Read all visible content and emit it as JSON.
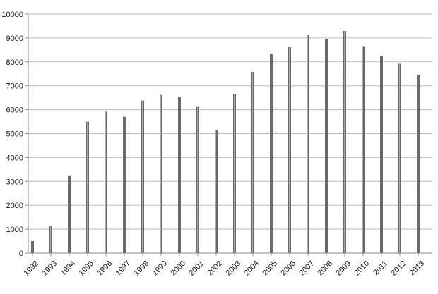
{
  "chart_data": {
    "type": "bar",
    "title": "",
    "xlabel": "",
    "ylabel": "",
    "categories": [
      "1992",
      "1993",
      "1994",
      "1995",
      "1996",
      "1997",
      "1998",
      "1999",
      "2000",
      "2001",
      "2002",
      "2003",
      "2004",
      "2005",
      "2006",
      "2007",
      "2008",
      "2009",
      "2010",
      "2011",
      "2012",
      "2013"
    ],
    "values": [
      500,
      1150,
      3250,
      5500,
      5920,
      5700,
      6380,
      6620,
      6530,
      6120,
      5150,
      6640,
      7580,
      8340,
      8620,
      9120,
      8960,
      9290,
      8660,
      8250,
      7920,
      7460
    ],
    "ylim": [
      0,
      10000
    ],
    "yticks": [
      0,
      1000,
      2000,
      3000,
      4000,
      5000,
      6000,
      7000,
      8000,
      9000,
      10000
    ],
    "grid": true,
    "legend": "none",
    "colors": {
      "bar": "#6a6a6a",
      "bar_highlight": "#a8a8a8",
      "grid": "#bdbdbd",
      "axis": "#8a8a8a"
    }
  }
}
